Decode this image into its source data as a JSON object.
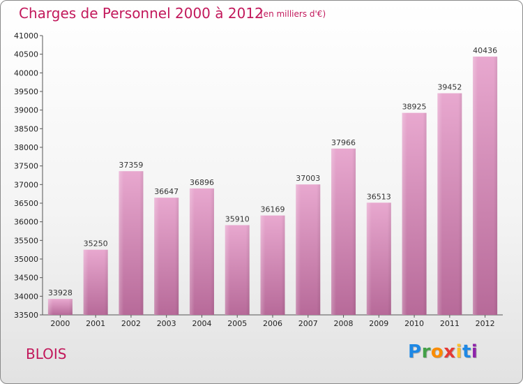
{
  "header": {
    "title": "Charges de Personnel 2000 à 2012",
    "subtitle": "(en milliers d'€)"
  },
  "footer": {
    "city": "BLOIS",
    "logo": "Proxiti"
  },
  "colors": {
    "title": "#c2185b",
    "bar_light": "#e8a8cf",
    "bar_dark": "#b76a99",
    "axis": "#555555"
  },
  "chart_data": {
    "type": "bar",
    "title": "Charges de Personnel 2000 à 2012",
    "subtitle": "(en milliers d'€)",
    "categories": [
      "2000",
      "2001",
      "2002",
      "2003",
      "2004",
      "2005",
      "2006",
      "2007",
      "2008",
      "2009",
      "2010",
      "2011",
      "2012"
    ],
    "values": [
      33928,
      35250,
      37359,
      36647,
      36896,
      35910,
      36169,
      37003,
      37966,
      36513,
      38925,
      39452,
      40436
    ],
    "ylim": [
      33500,
      41000
    ],
    "yticks": [
      33500,
      34000,
      34500,
      35000,
      35500,
      36000,
      36500,
      37000,
      37500,
      38000,
      38500,
      39000,
      39500,
      40000,
      40500,
      41000
    ],
    "grid": false,
    "data_labels": true
  }
}
